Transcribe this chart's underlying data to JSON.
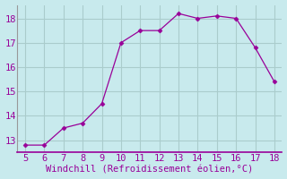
{
  "x": [
    5,
    6,
    7,
    8,
    9,
    10,
    11,
    12,
    13,
    14,
    15,
    16,
    17,
    18
  ],
  "y": [
    12.8,
    12.8,
    13.5,
    13.7,
    14.5,
    17.0,
    17.5,
    17.5,
    18.2,
    18.0,
    18.1,
    18.0,
    16.8,
    15.4
  ],
  "line_color": "#990099",
  "marker": "D",
  "marker_size": 2.5,
  "background_color": "#c8eaed",
  "grid_color": "#aacccc",
  "xlabel": "Windchill (Refroidissement éolien,°C)",
  "xlabel_color": "#990099",
  "tick_color": "#990099",
  "spine_color": "#999999",
  "xlim_min": 4.6,
  "xlim_max": 18.4,
  "ylim_min": 12.5,
  "ylim_max": 18.55,
  "yticks": [
    13,
    14,
    15,
    16,
    17,
    18
  ],
  "xticks": [
    5,
    6,
    7,
    8,
    9,
    10,
    11,
    12,
    13,
    14,
    15,
    16,
    17,
    18
  ],
  "font_size": 7.5
}
